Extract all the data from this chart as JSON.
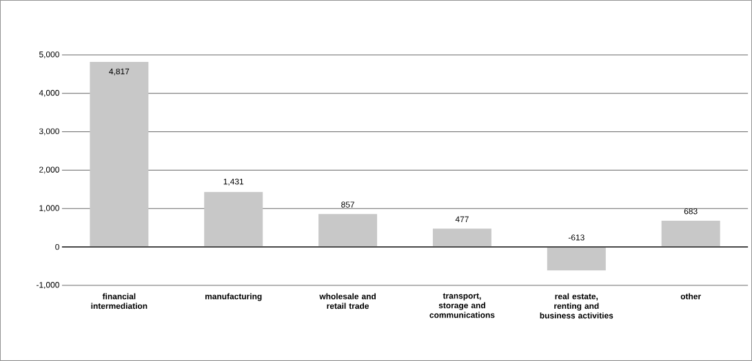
{
  "chart_data": {
    "type": "bar",
    "categories": [
      "financial intermediation",
      "manufacturing",
      "wholesale and retail trade",
      "transport, storage and communications",
      "real estate, renting and business activities",
      "other"
    ],
    "values": [
      4817,
      1431,
      857,
      477,
      -613,
      683
    ],
    "value_labels": [
      "4,817",
      "1,431",
      "857",
      "477",
      "-613",
      "683"
    ],
    "color": "#c8c8c8",
    "ylim": [
      -1000,
      5000
    ],
    "yticks": [
      {
        "value": -1000,
        "label": "-1,000"
      },
      0,
      {
        "value": 1000,
        "label": "1,000"
      },
      {
        "value": 2000,
        "label": "2,000"
      },
      {
        "value": 3000,
        "label": "3,000"
      },
      {
        "value": 4000,
        "label": "4,000"
      },
      {
        "value": 5000,
        "label": "5,000"
      }
    ],
    "grid": "y"
  }
}
